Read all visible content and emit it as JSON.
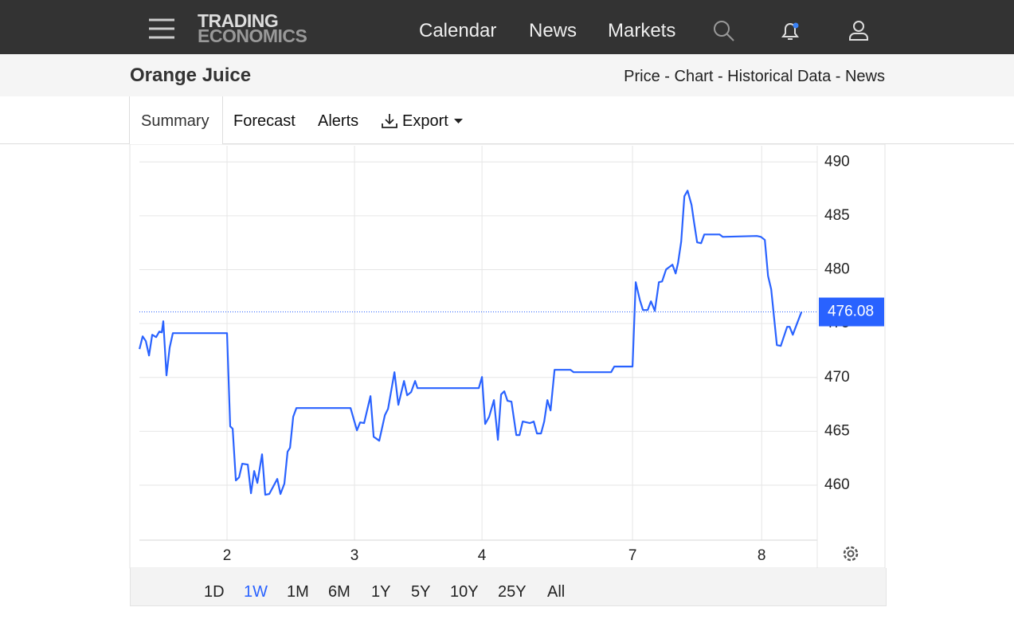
{
  "nav": {
    "logo": [
      "TRADING",
      "ECONOMICS"
    ],
    "links": [
      "Calendar",
      "News",
      "Markets"
    ]
  },
  "header": {
    "title": "Orange Juice",
    "links": "Price - Chart - Historical Data - News"
  },
  "tabs": [
    "Summary",
    "Forecast",
    "Alerts",
    "Export"
  ],
  "ranges": [
    "1D",
    "1W",
    "1M",
    "6M",
    "1Y",
    "5Y",
    "10Y",
    "25Y",
    "All"
  ],
  "active_range": 1,
  "chart_data": {
    "type": "line",
    "x": [
      0.313,
      0.338,
      0.363,
      0.388,
      0.413,
      0.444,
      0.469,
      0.488,
      0.5,
      0.525,
      0.55,
      0.575,
      1,
      1.025,
      1.044,
      1.069,
      1.094,
      1.119,
      1.163,
      1.188,
      1.213,
      1.238,
      1.275,
      1.3,
      1.331,
      1.394,
      1.419,
      1.45,
      1.475,
      1.494,
      1.519,
      1.544,
      1.969,
      2.019,
      2.044,
      2.075,
      2.125,
      2.15,
      2.194,
      2.238,
      2.263,
      2.313,
      2.344,
      2.388,
      2.413,
      2.444,
      2.475,
      2.494,
      2.525,
      2.544,
      2.975,
      3,
      3.025,
      3.056,
      3.094,
      3.125,
      3.15,
      3.175,
      3.2,
      3.231,
      3.269,
      3.294,
      3.319,
      3.375,
      3.406,
      3.431,
      3.463,
      3.488,
      3.513,
      3.538,
      3.569,
      3.694,
      3.719,
      4.013,
      4.038,
      4.181,
      4.206,
      4.238,
      4.263,
      4.3,
      4.325,
      4.356,
      4.388,
      4.413,
      4.444,
      4.494,
      4.519,
      4.538,
      4.563,
      4.588,
      4.613,
      4.644,
      4.663,
      4.688,
      4.719,
      4.744,
      4.863,
      4.888,
      5.156,
      5.188,
      5.219,
      5.244,
      5.269,
      5.313,
      5.344,
      5.394,
      5.413,
      5.438,
      5.469,
      5.506
    ],
    "series": [
      {
        "color": "#2962ff",
        "values": [
          472.63,
          473.81,
          473.37,
          472.04,
          473.96,
          473.74,
          474.26,
          474.18,
          475.22,
          470.19,
          472.78,
          474.11,
          474.11,
          465.46,
          465.24,
          460.44,
          460.73,
          461.99,
          461.91,
          459.25,
          461.32,
          460.21,
          462.87,
          459.11,
          459.18,
          460.58,
          459.18,
          460.14,
          463.1,
          463.47,
          466.35,
          467.16,
          467.16,
          465.09,
          465.83,
          465.76,
          468.27,
          464.5,
          464.13,
          466.5,
          467.09,
          470.49,
          467.46,
          469.67,
          468.34,
          468.64,
          469.67,
          469.01,
          469.01,
          469.01,
          469.01,
          470.04,
          465.68,
          466.35,
          467.9,
          464.21,
          468.42,
          468.71,
          467.83,
          467.75,
          464.65,
          464.65,
          465.91,
          465.76,
          465.91,
          464.8,
          464.8,
          465.91,
          467.9,
          466.94,
          470.71,
          470.71,
          470.49,
          470.49,
          471.01,
          471.01,
          478.84,
          477.21,
          476.25,
          476.25,
          477.07,
          476.18,
          478.84,
          478.91,
          480.02,
          480.47,
          479.65,
          480.61,
          482.61,
          486.82,
          487.34,
          486.01,
          484.46,
          482.54,
          482.46,
          483.27,
          483.27,
          483.05,
          483.13,
          483.05,
          482.76,
          479.43,
          478.17,
          473.0,
          472.93,
          474.7,
          474.7,
          473.96,
          474.92,
          476.08
        ]
      }
    ],
    "xlim": [
      0.3125,
      5.63
    ],
    "xticks": [
      {
        "value": 1,
        "label": "2"
      },
      {
        "value": 2,
        "label": "3"
      },
      {
        "value": 3,
        "label": "4"
      },
      {
        "value": 4.181,
        "label": "7"
      },
      {
        "value": 5.194,
        "label": "8"
      }
    ],
    "ylim": [
      454.9,
      491.5
    ],
    "yticks": [
      460,
      465,
      470,
      475,
      480,
      485,
      490
    ],
    "grid": true
  }
}
